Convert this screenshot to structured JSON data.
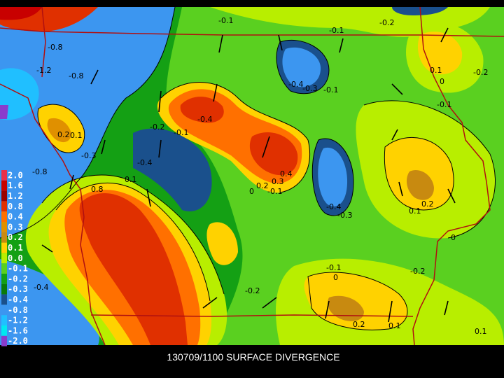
{
  "map": {
    "caption": "130709/1100 SURFACE DIVERGENCE",
    "colorbar": [
      {
        "label": "2.0",
        "color": "#e8304a"
      },
      {
        "label": "1.6",
        "color": "#c80000"
      },
      {
        "label": "1.2",
        "color": "#9a0000"
      },
      {
        "label": "0.8",
        "color": "#e03000"
      },
      {
        "label": "0.4",
        "color": "#ff7000"
      },
      {
        "label": "0.3",
        "color": "#e09000"
      },
      {
        "label": "0.2",
        "color": "#c88a10"
      },
      {
        "label": "0.1",
        "color": "#ffd200"
      },
      {
        "label": "0.0",
        "color": "#b8ee00"
      },
      {
        "label": "-0.1",
        "color": "#5ad020"
      },
      {
        "label": "-0.2",
        "color": "#14a014"
      },
      {
        "label": "-0.3",
        "color": "#0a7a0a"
      },
      {
        "label": "-0.4",
        "color": "#1a508c"
      },
      {
        "label": "-0.8",
        "color": "#3c96f0"
      },
      {
        "label": "-1.2",
        "color": "#20bfff"
      },
      {
        "label": "-1.6",
        "color": "#00e8f0"
      },
      {
        "label": "-2.0",
        "color": "#8a3ccc"
      }
    ],
    "contour_labels": [
      "-0.1",
      "-0.1",
      "-0.2",
      "-0.8",
      "-1.2",
      "-0.8",
      "-0.4",
      "-0.3",
      "-0.1",
      "0.1",
      "0",
      "-0.2",
      "-0.1",
      "-0.4",
      "-0.2",
      "-0.1",
      "0.2",
      "0.1",
      "-0.3",
      "-0.4",
      "-0.8",
      "0.4",
      "0.3",
      "0.2",
      "0",
      "-0.1",
      "0.8",
      "0.1",
      "-0.4",
      "-0.3",
      "0.1",
      "0.2",
      "0",
      "-0.1",
      "0",
      "-0.2",
      "-0.2",
      "-0.4",
      "0.2",
      "0.1",
      "0.1"
    ]
  }
}
